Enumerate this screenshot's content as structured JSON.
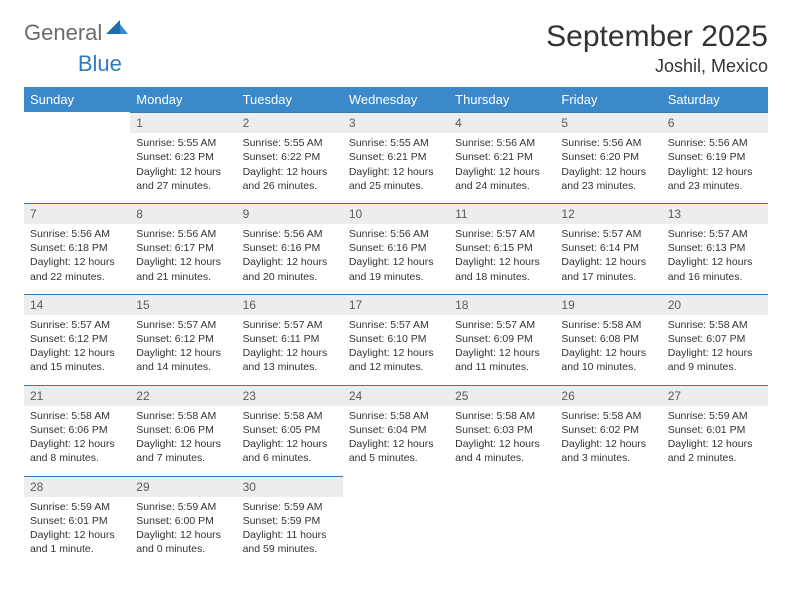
{
  "logo": {
    "part1": "General",
    "part2": "Blue"
  },
  "title": {
    "month": "September 2025",
    "location": "Joshil, Mexico"
  },
  "colors": {
    "header_bg": "#3b89c9",
    "header_text": "#ffffff",
    "daynum_bg": "#ededed",
    "daynum_text": "#5b5b5b",
    "row_divider": "#2f7bbf",
    "body_text": "#333333",
    "logo_gray": "#6b6b6b",
    "logo_blue": "#2f7bbf",
    "page_bg": "#ffffff"
  },
  "fonts": {
    "title_size_pt": 22,
    "location_size_pt": 14,
    "weekday_size_pt": 10,
    "daynum_size_pt": 9,
    "body_size_pt": 8
  },
  "weekdays": [
    "Sunday",
    "Monday",
    "Tuesday",
    "Wednesday",
    "Thursday",
    "Friday",
    "Saturday"
  ],
  "weeks": [
    [
      null,
      {
        "n": "1",
        "sr": "Sunrise: 5:55 AM",
        "ss": "Sunset: 6:23 PM",
        "d1": "Daylight: 12 hours",
        "d2": "and 27 minutes."
      },
      {
        "n": "2",
        "sr": "Sunrise: 5:55 AM",
        "ss": "Sunset: 6:22 PM",
        "d1": "Daylight: 12 hours",
        "d2": "and 26 minutes."
      },
      {
        "n": "3",
        "sr": "Sunrise: 5:55 AM",
        "ss": "Sunset: 6:21 PM",
        "d1": "Daylight: 12 hours",
        "d2": "and 25 minutes."
      },
      {
        "n": "4",
        "sr": "Sunrise: 5:56 AM",
        "ss": "Sunset: 6:21 PM",
        "d1": "Daylight: 12 hours",
        "d2": "and 24 minutes."
      },
      {
        "n": "5",
        "sr": "Sunrise: 5:56 AM",
        "ss": "Sunset: 6:20 PM",
        "d1": "Daylight: 12 hours",
        "d2": "and 23 minutes."
      },
      {
        "n": "6",
        "sr": "Sunrise: 5:56 AM",
        "ss": "Sunset: 6:19 PM",
        "d1": "Daylight: 12 hours",
        "d2": "and 23 minutes."
      }
    ],
    [
      {
        "n": "7",
        "sr": "Sunrise: 5:56 AM",
        "ss": "Sunset: 6:18 PM",
        "d1": "Daylight: 12 hours",
        "d2": "and 22 minutes."
      },
      {
        "n": "8",
        "sr": "Sunrise: 5:56 AM",
        "ss": "Sunset: 6:17 PM",
        "d1": "Daylight: 12 hours",
        "d2": "and 21 minutes."
      },
      {
        "n": "9",
        "sr": "Sunrise: 5:56 AM",
        "ss": "Sunset: 6:16 PM",
        "d1": "Daylight: 12 hours",
        "d2": "and 20 minutes."
      },
      {
        "n": "10",
        "sr": "Sunrise: 5:56 AM",
        "ss": "Sunset: 6:16 PM",
        "d1": "Daylight: 12 hours",
        "d2": "and 19 minutes."
      },
      {
        "n": "11",
        "sr": "Sunrise: 5:57 AM",
        "ss": "Sunset: 6:15 PM",
        "d1": "Daylight: 12 hours",
        "d2": "and 18 minutes."
      },
      {
        "n": "12",
        "sr": "Sunrise: 5:57 AM",
        "ss": "Sunset: 6:14 PM",
        "d1": "Daylight: 12 hours",
        "d2": "and 17 minutes."
      },
      {
        "n": "13",
        "sr": "Sunrise: 5:57 AM",
        "ss": "Sunset: 6:13 PM",
        "d1": "Daylight: 12 hours",
        "d2": "and 16 minutes."
      }
    ],
    [
      {
        "n": "14",
        "sr": "Sunrise: 5:57 AM",
        "ss": "Sunset: 6:12 PM",
        "d1": "Daylight: 12 hours",
        "d2": "and 15 minutes."
      },
      {
        "n": "15",
        "sr": "Sunrise: 5:57 AM",
        "ss": "Sunset: 6:12 PM",
        "d1": "Daylight: 12 hours",
        "d2": "and 14 minutes."
      },
      {
        "n": "16",
        "sr": "Sunrise: 5:57 AM",
        "ss": "Sunset: 6:11 PM",
        "d1": "Daylight: 12 hours",
        "d2": "and 13 minutes."
      },
      {
        "n": "17",
        "sr": "Sunrise: 5:57 AM",
        "ss": "Sunset: 6:10 PM",
        "d1": "Daylight: 12 hours",
        "d2": "and 12 minutes."
      },
      {
        "n": "18",
        "sr": "Sunrise: 5:57 AM",
        "ss": "Sunset: 6:09 PM",
        "d1": "Daylight: 12 hours",
        "d2": "and 11 minutes."
      },
      {
        "n": "19",
        "sr": "Sunrise: 5:58 AM",
        "ss": "Sunset: 6:08 PM",
        "d1": "Daylight: 12 hours",
        "d2": "and 10 minutes."
      },
      {
        "n": "20",
        "sr": "Sunrise: 5:58 AM",
        "ss": "Sunset: 6:07 PM",
        "d1": "Daylight: 12 hours",
        "d2": "and 9 minutes."
      }
    ],
    [
      {
        "n": "21",
        "sr": "Sunrise: 5:58 AM",
        "ss": "Sunset: 6:06 PM",
        "d1": "Daylight: 12 hours",
        "d2": "and 8 minutes."
      },
      {
        "n": "22",
        "sr": "Sunrise: 5:58 AM",
        "ss": "Sunset: 6:06 PM",
        "d1": "Daylight: 12 hours",
        "d2": "and 7 minutes."
      },
      {
        "n": "23",
        "sr": "Sunrise: 5:58 AM",
        "ss": "Sunset: 6:05 PM",
        "d1": "Daylight: 12 hours",
        "d2": "and 6 minutes."
      },
      {
        "n": "24",
        "sr": "Sunrise: 5:58 AM",
        "ss": "Sunset: 6:04 PM",
        "d1": "Daylight: 12 hours",
        "d2": "and 5 minutes."
      },
      {
        "n": "25",
        "sr": "Sunrise: 5:58 AM",
        "ss": "Sunset: 6:03 PM",
        "d1": "Daylight: 12 hours",
        "d2": "and 4 minutes."
      },
      {
        "n": "26",
        "sr": "Sunrise: 5:58 AM",
        "ss": "Sunset: 6:02 PM",
        "d1": "Daylight: 12 hours",
        "d2": "and 3 minutes."
      },
      {
        "n": "27",
        "sr": "Sunrise: 5:59 AM",
        "ss": "Sunset: 6:01 PM",
        "d1": "Daylight: 12 hours",
        "d2": "and 2 minutes."
      }
    ],
    [
      {
        "n": "28",
        "sr": "Sunrise: 5:59 AM",
        "ss": "Sunset: 6:01 PM",
        "d1": "Daylight: 12 hours",
        "d2": "and 1 minute."
      },
      {
        "n": "29",
        "sr": "Sunrise: 5:59 AM",
        "ss": "Sunset: 6:00 PM",
        "d1": "Daylight: 12 hours",
        "d2": "and 0 minutes."
      },
      {
        "n": "30",
        "sr": "Sunrise: 5:59 AM",
        "ss": "Sunset: 5:59 PM",
        "d1": "Daylight: 11 hours",
        "d2": "and 59 minutes."
      },
      null,
      null,
      null,
      null
    ]
  ]
}
